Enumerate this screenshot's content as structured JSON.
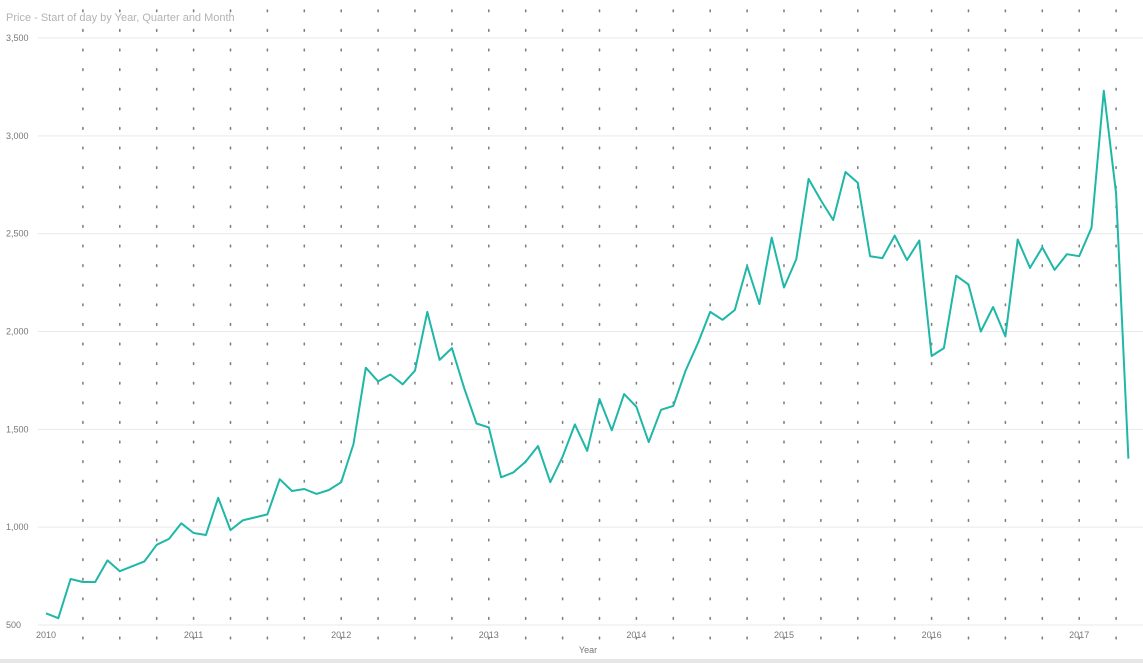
{
  "chart_data": {
    "type": "line",
    "title": "Price - Start of day by Year, Quarter and Month",
    "xlabel": "Year",
    "ylabel": "",
    "ylim": [
      500,
      3500
    ],
    "y_ticks": [
      "500",
      "1,000",
      "1,500",
      "2,000",
      "2,500",
      "3,000",
      "3,500"
    ],
    "y_tick_values": [
      500,
      1000,
      1500,
      2000,
      2500,
      3000,
      3500
    ],
    "x_ticks": [
      "2010",
      "2011",
      "2012",
      "2013",
      "2014",
      "2015",
      "2016",
      "2017"
    ],
    "x_tick_values": [
      2010,
      2011,
      2012,
      2013,
      2014,
      2015,
      2016,
      2017
    ],
    "grid": "horizontal lines at y ticks, dotted vertical guides per quarter",
    "legend": "none",
    "series_color": "#1fb7a7",
    "series": [
      {
        "x": [
          "2010-01",
          "2010-02",
          "2010-03",
          "2010-04",
          "2010-05",
          "2010-06",
          "2010-07",
          "2010-08",
          "2010-09",
          "2010-10",
          "2010-11",
          "2010-12",
          "2011-01",
          "2011-02",
          "2011-03",
          "2011-04",
          "2011-05",
          "2011-06",
          "2011-07",
          "2011-08",
          "2011-09",
          "2011-10",
          "2011-11",
          "2011-12",
          "2012-01",
          "2012-02",
          "2012-03",
          "2012-04",
          "2012-05",
          "2012-06",
          "2012-07",
          "2012-08",
          "2012-09",
          "2012-10",
          "2012-11",
          "2012-12",
          "2013-01",
          "2013-02",
          "2013-03",
          "2013-04",
          "2013-05",
          "2013-06",
          "2013-07",
          "2013-08",
          "2013-09",
          "2013-10",
          "2013-11",
          "2013-12",
          "2014-01",
          "2014-02",
          "2014-03",
          "2014-04",
          "2014-05",
          "2014-06",
          "2014-07",
          "2014-08",
          "2014-09",
          "2014-10",
          "2014-11",
          "2014-12",
          "2015-01",
          "2015-02",
          "2015-03",
          "2015-04",
          "2015-05",
          "2015-06",
          "2015-07",
          "2015-08",
          "2015-09",
          "2015-10",
          "2015-11",
          "2015-12",
          "2016-01",
          "2016-02",
          "2016-03",
          "2016-04",
          "2016-05",
          "2016-06",
          "2016-07",
          "2016-08",
          "2016-09",
          "2016-10",
          "2016-11",
          "2016-12",
          "2017-01",
          "2017-02",
          "2017-03",
          "2017-04",
          "2017-05"
        ],
        "values": [
          560,
          535,
          735,
          720,
          720,
          830,
          775,
          800,
          825,
          910,
          940,
          1020,
          970,
          960,
          1150,
          985,
          1035,
          1050,
          1065,
          1245,
          1185,
          1195,
          1170,
          1190,
          1230,
          1425,
          1815,
          1745,
          1780,
          1730,
          1800,
          2100,
          1855,
          1915,
          1710,
          1530,
          1510,
          1255,
          1280,
          1335,
          1415,
          1230,
          1360,
          1525,
          1390,
          1655,
          1495,
          1680,
          1615,
          1435,
          1600,
          1620,
          1800,
          1940,
          2100,
          2060,
          2110,
          2335,
          2140,
          2480,
          2225,
          2370,
          2780,
          2670,
          2570,
          2815,
          2760,
          2385,
          2375,
          2490,
          2365,
          2465,
          1875,
          1915,
          2285,
          2240,
          2000,
          2125,
          1975,
          2470,
          2325,
          2430,
          2315,
          2395,
          2385,
          2530,
          3230,
          2705,
          1350
        ]
      }
    ]
  }
}
